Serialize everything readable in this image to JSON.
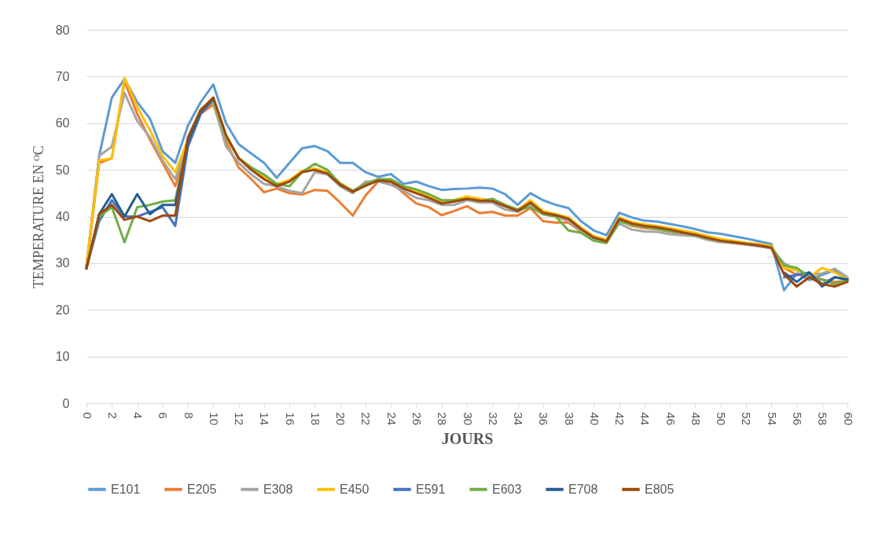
{
  "chart_data": {
    "type": "line",
    "xlabel": "JOURS",
    "ylabel": "TEMPERATURE  EN ᴼC",
    "x": [
      0,
      1,
      2,
      3,
      4,
      5,
      6,
      7,
      8,
      9,
      10,
      11,
      12,
      13,
      14,
      15,
      16,
      17,
      18,
      19,
      20,
      21,
      22,
      23,
      24,
      25,
      26,
      27,
      28,
      29,
      30,
      31,
      32,
      33,
      34,
      35,
      36,
      37,
      38,
      39,
      40,
      41,
      42,
      43,
      44,
      45,
      46,
      47,
      48,
      49,
      50,
      51,
      52,
      53,
      54,
      55,
      56,
      57,
      58,
      59,
      60
    ],
    "xlim": [
      0,
      60
    ],
    "xticks": [
      0,
      2,
      4,
      6,
      8,
      10,
      12,
      14,
      16,
      18,
      20,
      22,
      24,
      26,
      28,
      30,
      32,
      34,
      36,
      38,
      40,
      42,
      44,
      46,
      48,
      50,
      52,
      54,
      56,
      58,
      60
    ],
    "ylim": [
      0,
      80
    ],
    "yticks": [
      0,
      10,
      20,
      30,
      40,
      50,
      60,
      70,
      80
    ],
    "grid": "y",
    "legend": "bottom",
    "line_style": "solid",
    "series": [
      {
        "name": "E101",
        "color": "#5b9bd5",
        "values": [
          29,
          53,
          65.5,
          69.5,
          64.5,
          61,
          54,
          51.5,
          59.5,
          64.5,
          68.3,
          60,
          55.5,
          53.5,
          51.5,
          48.3,
          51.5,
          54.6,
          55.1,
          54,
          51.5,
          51.5,
          49.5,
          48.5,
          49.1,
          47,
          47.5,
          46.5,
          45.7,
          45.9,
          46,
          46.2,
          46,
          44.8,
          42.5,
          45,
          43.5,
          42.5,
          41.8,
          39,
          37,
          36,
          40.8,
          39.8,
          39.1,
          38.9,
          38.4,
          37.9,
          37.3,
          36.6,
          36.3,
          35.8,
          35.3,
          34.7,
          34.1,
          24.2,
          27.8,
          26.4,
          27.5,
          28.5,
          26.8
        ]
      },
      {
        "name": "E205",
        "color": "#ed7d31",
        "values": [
          29,
          51.5,
          52.5,
          69,
          62,
          56.5,
          51.5,
          46.5,
          55,
          62,
          64,
          56,
          50.5,
          48,
          45.2,
          46,
          45,
          44.7,
          45.7,
          45.5,
          43,
          40.2,
          44.5,
          47.5,
          47.4,
          45,
          42.8,
          42,
          40.3,
          41.2,
          42.2,
          40.7,
          41,
          40.2,
          40.2,
          41.8,
          39,
          38.7,
          38.7,
          36.8,
          35,
          34.5,
          39.2,
          38,
          37.5,
          37.3,
          36.8,
          36.3,
          36,
          35.2,
          34.6,
          34.3,
          34,
          33.7,
          33.2,
          29,
          27.5,
          27.5,
          26.5,
          26,
          26.2
        ]
      },
      {
        "name": "E308",
        "color": "#a5a5a5",
        "values": [
          29.5,
          53,
          55,
          66.5,
          60.5,
          57,
          52,
          48,
          56,
          62.5,
          64.5,
          55,
          51.5,
          49,
          47,
          46.5,
          45.5,
          45,
          49.5,
          49,
          46.5,
          45,
          47.5,
          47.5,
          46.8,
          45.5,
          44,
          43.5,
          42.5,
          42.5,
          43.5,
          43,
          43,
          41.5,
          41,
          42.5,
          40.5,
          40,
          39,
          37,
          35.2,
          34.5,
          38.5,
          37.2,
          36.8,
          36.7,
          36.2,
          36,
          35.8,
          35,
          34.5,
          34.3,
          34,
          33.6,
          33.2,
          30,
          28.5,
          27.5,
          27.8,
          28.8,
          27
        ]
      },
      {
        "name": "E450",
        "color": "#ffc000",
        "values": [
          29.5,
          52,
          52.5,
          69.7,
          63.5,
          58.5,
          53,
          49.5,
          56.5,
          63,
          65,
          57,
          52.5,
          50.5,
          48.5,
          47,
          47.8,
          49.8,
          50.3,
          49.5,
          47.2,
          45.5,
          47,
          48,
          47.8,
          46.3,
          45.5,
          44.3,
          43.2,
          43.6,
          44.3,
          43.8,
          43.5,
          42.5,
          41.5,
          43.5,
          41.2,
          40.5,
          39.8,
          37.6,
          35.8,
          35,
          39.8,
          38.8,
          38.3,
          38,
          37.5,
          37,
          36.5,
          35.8,
          35.2,
          34.8,
          34.4,
          34.1,
          33.7,
          29,
          28.5,
          27,
          29,
          28,
          26.5
        ]
      },
      {
        "name": "E591",
        "color": "#4472c4",
        "values": [
          29,
          39,
          43.5,
          40,
          40,
          41,
          42,
          38,
          55,
          62,
          65,
          null,
          null,
          null,
          null,
          null,
          null,
          null,
          null,
          null,
          null,
          null,
          null,
          null,
          null,
          null,
          null,
          null,
          null,
          null,
          null,
          null,
          null,
          null,
          null,
          null,
          null,
          null,
          null,
          null,
          null,
          null,
          null,
          null,
          null,
          null,
          null,
          null,
          null,
          null,
          null,
          null,
          null,
          null,
          null,
          27,
          27.5,
          28,
          25.5,
          27,
          26.5
        ]
      },
      {
        "name": "E603",
        "color": "#70ad47",
        "values": [
          29,
          40,
          42,
          34.5,
          42,
          42.5,
          43.2,
          43.5,
          56,
          62.5,
          65,
          57,
          52.5,
          50.5,
          49,
          47,
          46.5,
          49.5,
          51.3,
          50,
          47,
          45.5,
          47,
          48,
          48,
          46.5,
          45.8,
          44.8,
          43.5,
          43.5,
          43.8,
          43.3,
          43.8,
          42.5,
          41.5,
          42,
          40.5,
          40,
          37,
          36.5,
          34.8,
          34.3,
          39,
          38.2,
          37.8,
          37.3,
          36.8,
          36.5,
          36,
          35.3,
          34.8,
          34.5,
          34.2,
          33.8,
          33.4,
          29.5,
          29,
          27,
          26.5,
          25.5,
          26.5
        ]
      },
      {
        "name": "E708",
        "color": "#255e91",
        "values": [
          29,
          40.5,
          44.8,
          40,
          44.8,
          40.5,
          42.5,
          42.5,
          56,
          62.5,
          65.2,
          null,
          null,
          null,
          null,
          null,
          null,
          null,
          null,
          null,
          null,
          null,
          null,
          null,
          null,
          null,
          null,
          null,
          null,
          null,
          null,
          null,
          null,
          null,
          null,
          null,
          null,
          null,
          null,
          null,
          null,
          null,
          null,
          null,
          null,
          null,
          null,
          null,
          null,
          null,
          null,
          null,
          null,
          null,
          null,
          28,
          26,
          28,
          25,
          27,
          26.5
        ]
      },
      {
        "name": "E805",
        "color": "#9e480e",
        "values": [
          28.8,
          40.5,
          42.5,
          39.3,
          40,
          39,
          40.2,
          40.2,
          57,
          62.8,
          65.5,
          57.5,
          52.5,
          50,
          48,
          46.5,
          47.5,
          49.5,
          50,
          49.2,
          46.8,
          45.3,
          46.6,
          47.7,
          47.5,
          46,
          45,
          44,
          42.8,
          43.2,
          43.8,
          43.4,
          43.3,
          42.2,
          41.2,
          43,
          40.8,
          40.3,
          39.5,
          37.3,
          35.5,
          34.7,
          39.5,
          38.5,
          38,
          37.7,
          37.2,
          36.6,
          36.1,
          35.4,
          34.8,
          34.5,
          34.1,
          33.8,
          33.3,
          27.6,
          25,
          27,
          25.5,
          25,
          26
        ]
      }
    ]
  }
}
